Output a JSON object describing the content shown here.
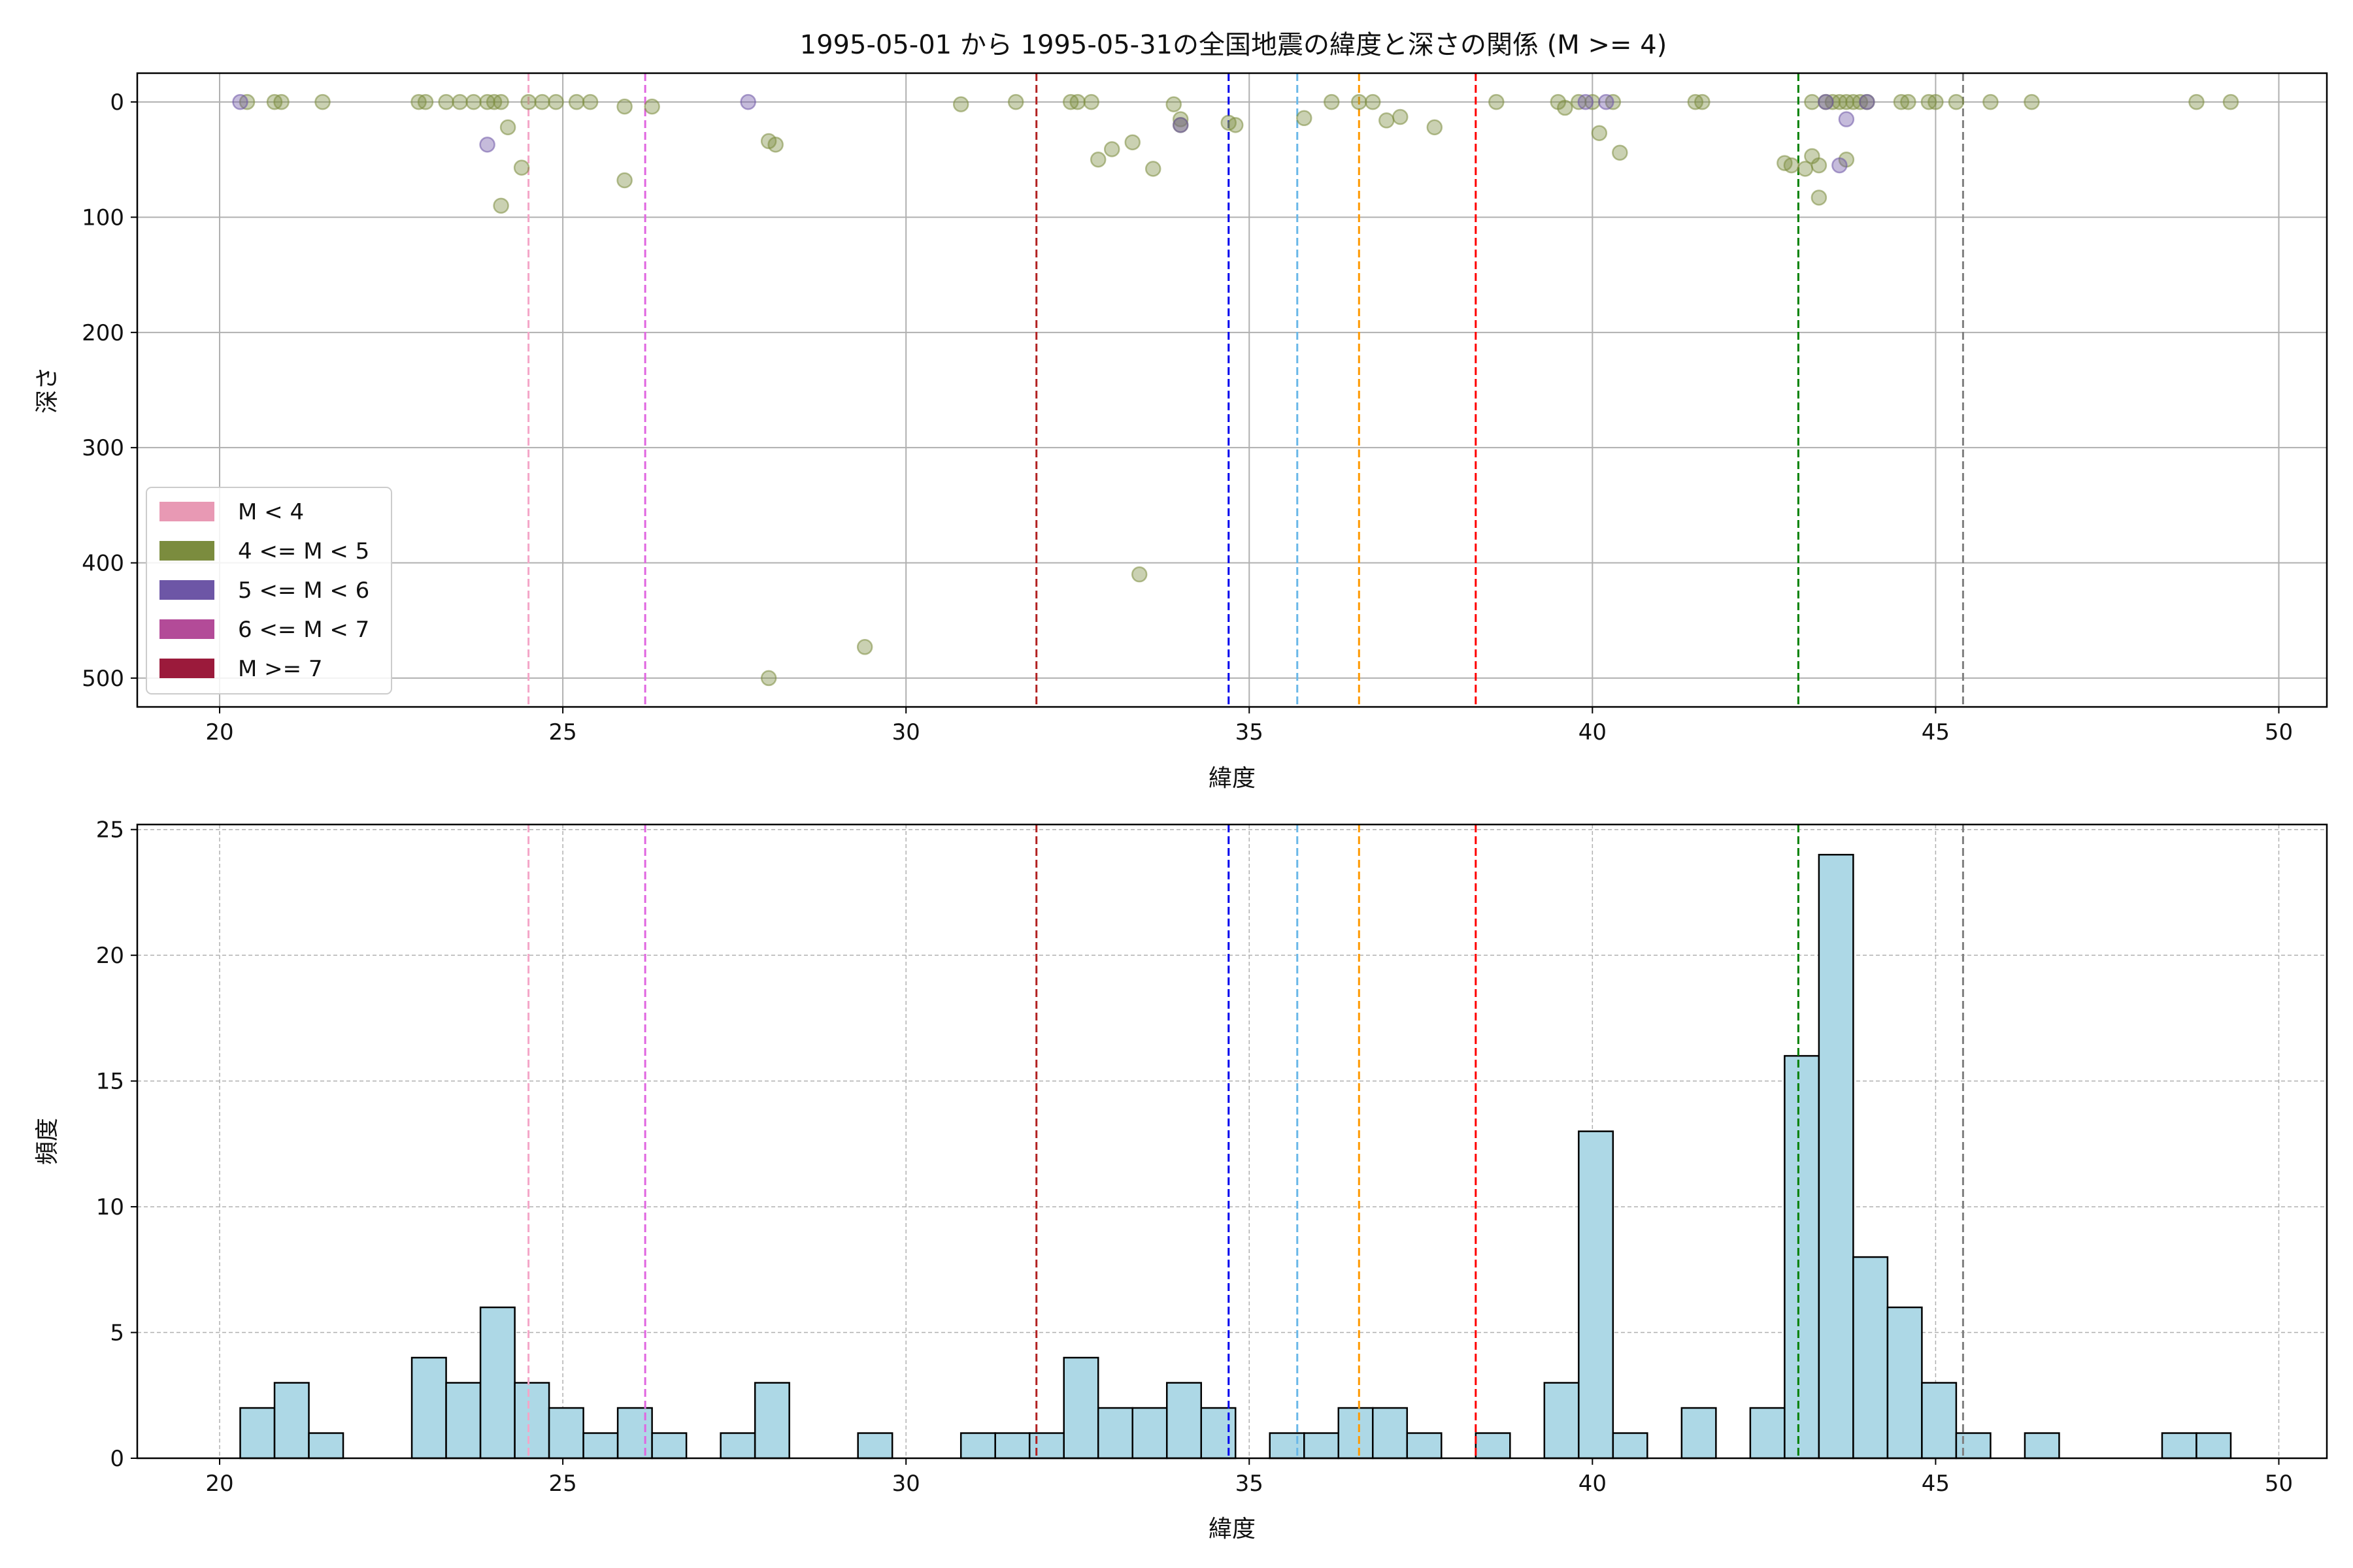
{
  "chart_data": [
    {
      "type": "scatter",
      "title": "1995-05-01 から 1995-05-31の全国地震の緯度と深さの関係 (M >= 4)",
      "xlabel": "緯度",
      "ylabel": "深さ",
      "xlim": [
        18.8,
        50.7
      ],
      "ylim": [
        525,
        -25
      ],
      "y_inverted": true,
      "grid": true,
      "xticks": [
        20,
        25,
        30,
        35,
        40,
        45,
        50
      ],
      "yticks": [
        0,
        100,
        200,
        300,
        400,
        500
      ],
      "legend_position": "lower-left",
      "legend": [
        {
          "label": "M < 4",
          "color": "#e899b4"
        },
        {
          "label": "4 <= M < 5",
          "color": "#7b8c3e"
        },
        {
          "label": "5 <= M < 6",
          "color": "#6d56a6"
        },
        {
          "label": "6 <= M < 7",
          "color": "#b34b98"
        },
        {
          "label": "M >= 7",
          "color": "#9b1a3b"
        }
      ],
      "vlines": [
        {
          "x": 24.5,
          "color": "#f4a6c8"
        },
        {
          "x": 26.2,
          "color": "#e066e0"
        },
        {
          "x": 31.9,
          "color": "#b22222"
        },
        {
          "x": 34.7,
          "color": "#0000ee"
        },
        {
          "x": 35.7,
          "color": "#6ab8e8"
        },
        {
          "x": 36.6,
          "color": "#ff9900"
        },
        {
          "x": 38.3,
          "color": "#ff0000"
        },
        {
          "x": 43.0,
          "color": "#008000"
        },
        {
          "x": 45.4,
          "color": "#808080"
        }
      ],
      "series": [
        {
          "name": "4 <= M < 5",
          "color": "#7b8c3e",
          "points": [
            [
              20.4,
              0
            ],
            [
              20.8,
              0
            ],
            [
              20.9,
              0
            ],
            [
              21.5,
              0
            ],
            [
              22.9,
              0
            ],
            [
              23.0,
              0
            ],
            [
              23.3,
              0
            ],
            [
              23.5,
              0
            ],
            [
              23.7,
              0
            ],
            [
              23.9,
              0
            ],
            [
              24.0,
              0
            ],
            [
              24.1,
              0
            ],
            [
              24.2,
              22
            ],
            [
              24.1,
              90
            ],
            [
              24.4,
              57
            ],
            [
              24.5,
              0
            ],
            [
              24.7,
              0
            ],
            [
              24.9,
              0
            ],
            [
              25.2,
              0
            ],
            [
              25.4,
              0
            ],
            [
              25.9,
              68
            ],
            [
              25.9,
              4
            ],
            [
              26.3,
              4
            ],
            [
              28.0,
              34
            ],
            [
              28.1,
              37
            ],
            [
              28.0,
              500
            ],
            [
              29.4,
              473
            ],
            [
              30.8,
              2
            ],
            [
              31.6,
              0
            ],
            [
              32.4,
              0
            ],
            [
              32.5,
              0
            ],
            [
              32.7,
              0
            ],
            [
              32.8,
              50
            ],
            [
              33.0,
              41
            ],
            [
              33.3,
              35
            ],
            [
              33.6,
              58
            ],
            [
              33.9,
              2
            ],
            [
              34.0,
              15
            ],
            [
              34.0,
              20
            ],
            [
              34.7,
              18
            ],
            [
              34.8,
              20
            ],
            [
              33.4,
              410
            ],
            [
              35.8,
              14
            ],
            [
              36.2,
              0
            ],
            [
              36.6,
              0
            ],
            [
              36.8,
              0
            ],
            [
              37.0,
              16
            ],
            [
              37.2,
              13
            ],
            [
              37.7,
              22
            ],
            [
              38.6,
              0
            ],
            [
              39.5,
              0
            ],
            [
              39.6,
              5
            ],
            [
              39.8,
              0
            ],
            [
              40.0,
              0
            ],
            [
              40.1,
              27
            ],
            [
              40.3,
              0
            ],
            [
              40.4,
              44
            ],
            [
              41.5,
              0
            ],
            [
              41.6,
              0
            ],
            [
              42.8,
              53
            ],
            [
              42.9,
              55
            ],
            [
              43.1,
              58
            ],
            [
              43.2,
              47
            ],
            [
              43.3,
              55
            ],
            [
              43.3,
              83
            ],
            [
              43.2,
              0
            ],
            [
              43.4,
              0
            ],
            [
              43.5,
              0
            ],
            [
              43.6,
              0
            ],
            [
              43.7,
              0
            ],
            [
              43.8,
              0
            ],
            [
              43.9,
              0
            ],
            [
              44.0,
              0
            ],
            [
              43.7,
              50
            ],
            [
              44.5,
              0
            ],
            [
              44.6,
              0
            ],
            [
              44.9,
              0
            ],
            [
              45.0,
              0
            ],
            [
              45.3,
              0
            ],
            [
              45.8,
              0
            ],
            [
              46.4,
              0
            ],
            [
              48.8,
              0
            ],
            [
              49.3,
              0
            ]
          ]
        },
        {
          "name": "5 <= M < 6",
          "color": "#6d56a6",
          "points": [
            [
              20.3,
              0
            ],
            [
              23.9,
              37
            ],
            [
              27.7,
              0
            ],
            [
              34.0,
              20
            ],
            [
              39.9,
              0
            ],
            [
              40.2,
              0
            ],
            [
              43.4,
              0
            ],
            [
              43.6,
              55
            ],
            [
              43.7,
              15
            ],
            [
              44.0,
              0
            ]
          ]
        }
      ]
    },
    {
      "type": "bar",
      "subtype": "histogram",
      "xlabel": "緯度",
      "ylabel": "頻度",
      "xlim": [
        18.8,
        50.7
      ],
      "ylim": [
        0,
        25.2
      ],
      "grid": true,
      "xticks": [
        20,
        25,
        30,
        35,
        40,
        45,
        50
      ],
      "yticks": [
        0,
        5,
        10,
        15,
        20,
        25
      ],
      "bar_color": "#add8e6",
      "bin_start": 20.3,
      "bin_width": 0.5,
      "values": [
        2,
        3,
        1,
        0,
        0,
        4,
        3,
        6,
        3,
        2,
        1,
        2,
        1,
        0,
        1,
        3,
        0,
        0,
        1,
        0,
        0,
        1,
        1,
        1,
        4,
        2,
        2,
        3,
        2,
        0,
        1,
        1,
        2,
        2,
        1,
        0,
        1,
        0,
        3,
        13,
        1,
        0,
        2,
        0,
        2,
        16,
        24,
        8,
        6,
        3,
        1,
        0,
        1,
        0,
        0,
        0,
        1,
        1
      ],
      "vlines": [
        {
          "x": 24.5,
          "color": "#f4a6c8"
        },
        {
          "x": 26.2,
          "color": "#e066e0"
        },
        {
          "x": 31.9,
          "color": "#b22222"
        },
        {
          "x": 34.7,
          "color": "#0000ee"
        },
        {
          "x": 35.7,
          "color": "#6ab8e8"
        },
        {
          "x": 36.6,
          "color": "#ff9900"
        },
        {
          "x": 38.3,
          "color": "#ff0000"
        },
        {
          "x": 43.0,
          "color": "#008000"
        },
        {
          "x": 45.4,
          "color": "#808080"
        }
      ]
    }
  ]
}
